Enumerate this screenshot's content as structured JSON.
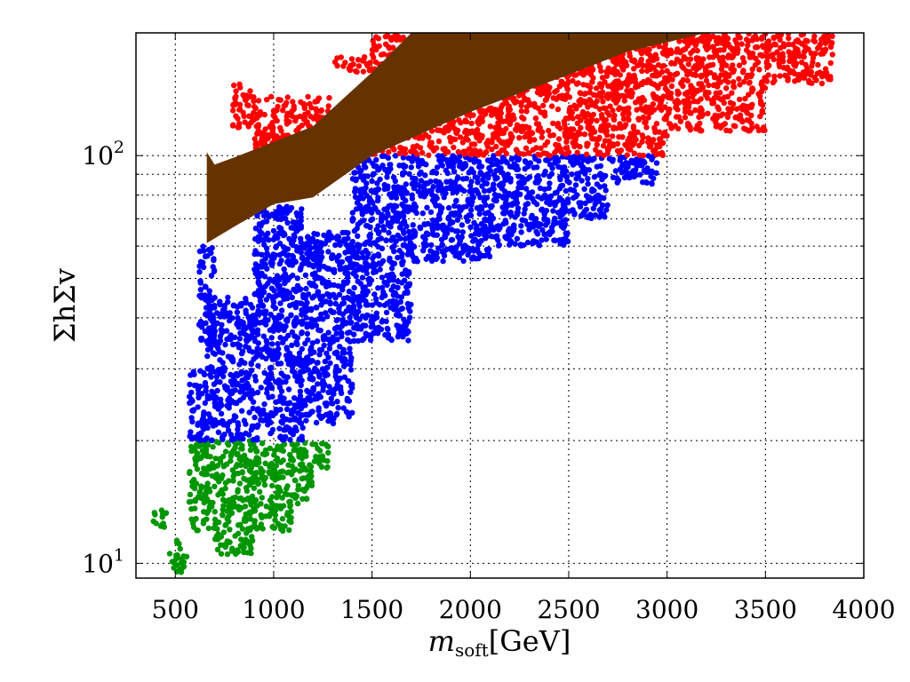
{
  "chart_data": {
    "type": "scatter",
    "xlabel": {
      "main": "m",
      "sub": "soft",
      "rest": "[GeV]"
    },
    "ylabel": "ΣhΣv",
    "xlim": [
      300,
      4000
    ],
    "ylim": [
      9.2,
      200
    ],
    "yscale": "log",
    "grid": true,
    "x_ticks": [
      500,
      1000,
      1500,
      2000,
      2500,
      3000,
      3500,
      4000
    ],
    "x_tick_labels": [
      "500",
      "1000",
      "1500",
      "2000",
      "2500",
      "3000",
      "3500",
      "4000"
    ],
    "y_major_ticks": [
      10,
      100
    ],
    "y_tick_labels": [
      {
        "base": "10",
        "exp": "1"
      },
      {
        "base": "10",
        "exp": "2"
      }
    ],
    "y_minor_ticks": [
      20,
      30,
      40,
      50,
      60,
      70,
      80,
      90
    ],
    "colors": {
      "green": "#009600",
      "blue": "#0000ff",
      "red": "#ff0000",
      "band": "#663300"
    },
    "series": [
      {
        "color": "green",
        "y_range": [
          9.5,
          20
        ],
        "clusters": [
          {
            "x": [
              380,
              460
            ],
            "y": [
              12,
              13.5
            ]
          },
          {
            "x": [
              470,
              560
            ],
            "y": [
              9.5,
              11.5
            ]
          },
          {
            "x": [
              570,
              700
            ],
            "y": [
              12,
              20
            ]
          },
          {
            "x": [
              700,
              900
            ],
            "y": [
              10.5,
              20
            ]
          },
          {
            "x": [
              900,
              1100
            ],
            "y": [
              12,
              20
            ]
          },
          {
            "x": [
              1100,
              1200
            ],
            "y": [
              14,
              20
            ]
          },
          {
            "x": [
              1200,
              1280
            ],
            "y": [
              17,
              20
            ]
          }
        ]
      },
      {
        "color": "blue",
        "y_range": [
          20,
          100
        ],
        "clusters": [
          {
            "x": [
              570,
              660
            ],
            "y": [
              20,
              30
            ]
          },
          {
            "x": [
              620,
              700
            ],
            "y": [
              35,
              60
            ]
          },
          {
            "x": [
              660,
              900
            ],
            "y": [
              20,
              45
            ]
          },
          {
            "x": [
              900,
              1150
            ],
            "y": [
              20,
              75
            ]
          },
          {
            "x": [
              1150,
              1400
            ],
            "y": [
              22,
              65
            ]
          },
          {
            "x": [
              1400,
              1700
            ],
            "y": [
              35,
              100
            ]
          },
          {
            "x": [
              1700,
              2100
            ],
            "y": [
              55,
              100
            ]
          },
          {
            "x": [
              2100,
              2500
            ],
            "y": [
              60,
              100
            ]
          },
          {
            "x": [
              2500,
              2700
            ],
            "y": [
              70,
              100
            ]
          },
          {
            "x": [
              2700,
              2950
            ],
            "y": [
              85,
              100
            ]
          }
        ]
      },
      {
        "color": "red",
        "y_range": [
          100,
          200
        ],
        "clusters": [
          {
            "x": [
              790,
              900
            ],
            "y": [
              115,
              150
            ]
          },
          {
            "x": [
              900,
              1300
            ],
            "y": [
              100,
              140
            ]
          },
          {
            "x": [
              1300,
              1500
            ],
            "y": [
              160,
              175
            ]
          },
          {
            "x": [
              1500,
              1900
            ],
            "y": [
              100,
              200
            ]
          },
          {
            "x": [
              1900,
              2500
            ],
            "y": [
              100,
              200
            ]
          },
          {
            "x": [
              2500,
              3000
            ],
            "y": [
              100,
              200
            ]
          },
          {
            "x": [
              3000,
              3500
            ],
            "y": [
              115,
              200
            ]
          },
          {
            "x": [
              3500,
              3850
            ],
            "y": [
              150,
              200
            ]
          }
        ]
      }
    ],
    "band": {
      "color": "band",
      "upper": [
        [
          660,
          102
        ],
        [
          700,
          95
        ],
        [
          800,
          99
        ],
        [
          1000,
          108
        ],
        [
          1200,
          118
        ],
        [
          1500,
          160
        ],
        [
          1700,
          200
        ],
        [
          3200,
          200
        ]
      ],
      "lower": [
        [
          3200,
          200
        ],
        [
          2800,
          180
        ],
        [
          2500,
          158
        ],
        [
          2000,
          128
        ],
        [
          1500,
          100
        ],
        [
          1200,
          79
        ],
        [
          1000,
          76
        ],
        [
          800,
          67
        ],
        [
          660,
          61
        ]
      ]
    }
  }
}
